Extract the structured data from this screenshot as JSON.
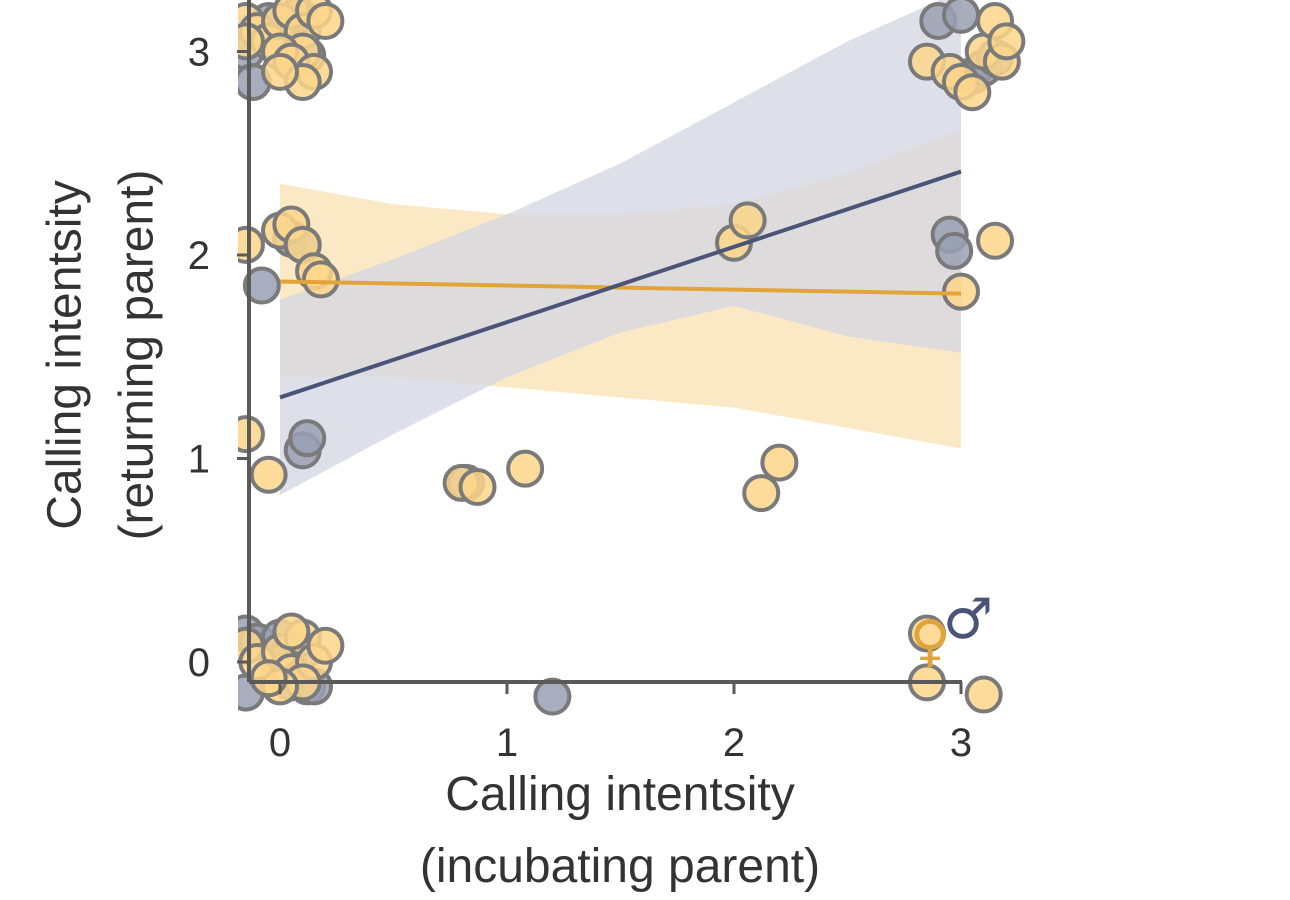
{
  "chart_data": {
    "type": "scatter",
    "xlabel": [
      "Calling intentsity",
      "(incubating parent)"
    ],
    "ylabel": [
      "Calling intentsity",
      "(returning parent)"
    ],
    "xlim": [
      -0.15,
      3.2
    ],
    "ylim": [
      -0.25,
      3.2
    ],
    "x_ticks": [
      "0",
      "1",
      "2",
      "3"
    ],
    "y_ticks": [
      "0",
      "1",
      "2",
      "3"
    ],
    "grid": false,
    "legend_position": "bottom-right",
    "colors": {
      "female": "#FDD68A",
      "female_line": "#E2A43A",
      "female_band": "#F9E2B3",
      "male": "#9AA0B4",
      "male_line": "#4A5478",
      "male_band": "#D3D6E1",
      "marker_edge": "#7A7A7A",
      "axis": "#5A5A5A"
    },
    "series": [
      {
        "name": "♀",
        "color": "#FDD68A",
        "fit": {
          "x": [
            0,
            3
          ],
          "y": [
            1.87,
            1.81
          ]
        },
        "ci": {
          "x": [
            0,
            0.5,
            1,
            1.5,
            2,
            2.5,
            3
          ],
          "lower": [
            1.4,
            1.4,
            1.35,
            1.3,
            1.25,
            1.15,
            1.05
          ],
          "upper": [
            2.35,
            2.25,
            2.2,
            2.2,
            2.25,
            2.4,
            2.62
          ]
        },
        "points": [
          [
            -0.15,
            3.15
          ],
          [
            -0.1,
            3.1
          ],
          [
            -0.05,
            3.05
          ],
          [
            0.0,
            3.15
          ],
          [
            0.05,
            3.2
          ],
          [
            0.1,
            3.1
          ],
          [
            0.15,
            3.2
          ],
          [
            0.2,
            3.15
          ],
          [
            0.1,
            3.0
          ],
          [
            0.0,
            3.0
          ],
          [
            0.05,
            2.95
          ],
          [
            0.15,
            2.9
          ],
          [
            0.1,
            2.85
          ],
          [
            0.0,
            2.9
          ],
          [
            -0.15,
            3.05
          ],
          [
            -0.15,
            2.05
          ],
          [
            0.0,
            2.12
          ],
          [
            0.05,
            2.15
          ],
          [
            0.1,
            2.05
          ],
          [
            0.15,
            1.92
          ],
          [
            0.18,
            1.88
          ],
          [
            -0.15,
            1.12
          ],
          [
            -0.05,
            0.92
          ],
          [
            0.8,
            0.88
          ],
          [
            0.87,
            0.86
          ],
          [
            1.08,
            0.95
          ],
          [
            2.0,
            2.06
          ],
          [
            2.06,
            2.17
          ],
          [
            2.12,
            0.83
          ],
          [
            2.2,
            0.98
          ],
          [
            2.85,
            2.95
          ],
          [
            2.95,
            2.9
          ],
          [
            3.0,
            2.85
          ],
          [
            3.05,
            2.8
          ],
          [
            3.1,
            3.0
          ],
          [
            3.15,
            3.15
          ],
          [
            3.18,
            2.95
          ],
          [
            3.2,
            3.05
          ],
          [
            3.0,
            1.82
          ],
          [
            3.15,
            2.07
          ],
          [
            -0.15,
            0.08
          ],
          [
            -0.1,
            0.0
          ],
          [
            0.0,
            0.05
          ],
          [
            0.05,
            -0.05
          ],
          [
            0.1,
            0.12
          ],
          [
            0.15,
            0.0
          ],
          [
            0.2,
            0.08
          ],
          [
            0.1,
            -0.1
          ],
          [
            0.0,
            -0.12
          ],
          [
            0.05,
            0.15
          ],
          [
            -0.05,
            -0.08
          ],
          [
            2.85,
            0.14
          ],
          [
            2.85,
            -0.1
          ],
          [
            3.1,
            -0.16
          ]
        ]
      },
      {
        "name": "♂",
        "color": "#9AA0B4",
        "fit": {
          "x": [
            0,
            3
          ],
          "y": [
            1.3,
            2.41
          ]
        },
        "ci": {
          "x": [
            0,
            0.5,
            1,
            1.5,
            2,
            2.5,
            3
          ],
          "lower": [
            0.82,
            1.12,
            1.4,
            1.62,
            1.75,
            1.6,
            1.52
          ],
          "upper": [
            1.78,
            1.98,
            2.2,
            2.45,
            2.75,
            3.05,
            3.3
          ]
        },
        "points": [
          [
            -0.15,
            3.0
          ],
          [
            -0.12,
            2.85
          ],
          [
            -0.05,
            3.15
          ],
          [
            0.05,
            3.05
          ],
          [
            0.12,
            2.98
          ],
          [
            0.08,
            3.18
          ],
          [
            0.05,
            2.08
          ],
          [
            0.1,
            2.05
          ],
          [
            -0.08,
            1.85
          ],
          [
            0.1,
            1.04
          ],
          [
            0.12,
            1.1
          ],
          [
            0.82,
            0.88
          ],
          [
            2.9,
            3.15
          ],
          [
            3.0,
            3.18
          ],
          [
            3.05,
            2.88
          ],
          [
            3.1,
            2.92
          ],
          [
            3.15,
            2.97
          ],
          [
            2.95,
            2.1
          ],
          [
            2.97,
            2.02
          ],
          [
            -0.15,
            0.14
          ],
          [
            -0.1,
            0.1
          ],
          [
            0.0,
            0.12
          ],
          [
            0.05,
            -0.1
          ],
          [
            0.1,
            0.05
          ],
          [
            0.12,
            -0.12
          ],
          [
            -0.15,
            -0.15
          ],
          [
            0.0,
            0.0
          ],
          [
            0.15,
            -0.12
          ],
          [
            1.2,
            -0.17
          ]
        ]
      }
    ]
  }
}
